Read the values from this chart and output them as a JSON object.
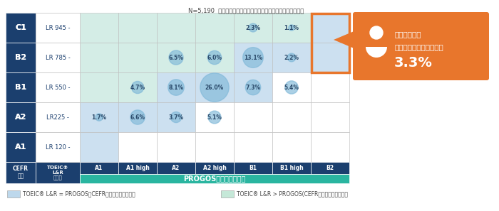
{
  "title": "N=5,190  全体に対して、各スコア・レベルの人数の割合を記載",
  "cefr_rows": [
    "C1",
    "B2",
    "B1",
    "A2",
    "A1"
  ],
  "toeic_labels": [
    "LR 945 -",
    "LR 785 -",
    "LR 550 -",
    "LR225 -",
    "LR 120 -"
  ],
  "progos_cols": [
    "A1",
    "A1 high",
    "A2",
    "A2 high",
    "B1",
    "B1 high",
    "B2"
  ],
  "data": [
    [
      0,
      0,
      0,
      0,
      2.3,
      1.1,
      0
    ],
    [
      0,
      0,
      6.5,
      6.0,
      13.1,
      2.2,
      0
    ],
    [
      0,
      4.7,
      8.1,
      26.0,
      7.3,
      5.4,
      0
    ],
    [
      1.7,
      6.6,
      3.7,
      5.1,
      0,
      0,
      0
    ],
    [
      0,
      0,
      0,
      0,
      0,
      0,
      0
    ]
  ],
  "cefr_levels": [
    5,
    4,
    3,
    2,
    1
  ],
  "progos_levels": [
    1,
    1.5,
    2,
    2.5,
    3,
    3.5,
    4
  ],
  "bg_light_blue": "#cce0f0",
  "bg_light_green": "#d4ede6",
  "bg_white": "#ffffff",
  "header_dark_blue": "#1b3f6e",
  "header_teal": "#2ab5a0",
  "circle_color": "#7fb8d8",
  "circle_alpha": 0.65,
  "text_color": "#4a6a88",
  "highlight_box_color": "#e8762c",
  "highlight_border_color": "#e8762c",
  "legend_color1": "#bdd8ec",
  "legend_color2": "#c5e8d8",
  "legend_label1": "TOEIC® L&R = PROGOS（CEFR換算のレベル比較）",
  "legend_label2": "TOEIC® L&R > PROGOS(CEFR換算のレベル比較）",
  "cefr_label": "CEFR\n換算",
  "toeic_score_label": "TOEIC®\nL&R\nスコア",
  "progos_label": "PROGOS（自動採点版）",
  "callout_line1": "英語を使って",
  "callout_line2": "十分に業務ができる人は",
  "callout_pct": "3.3%"
}
